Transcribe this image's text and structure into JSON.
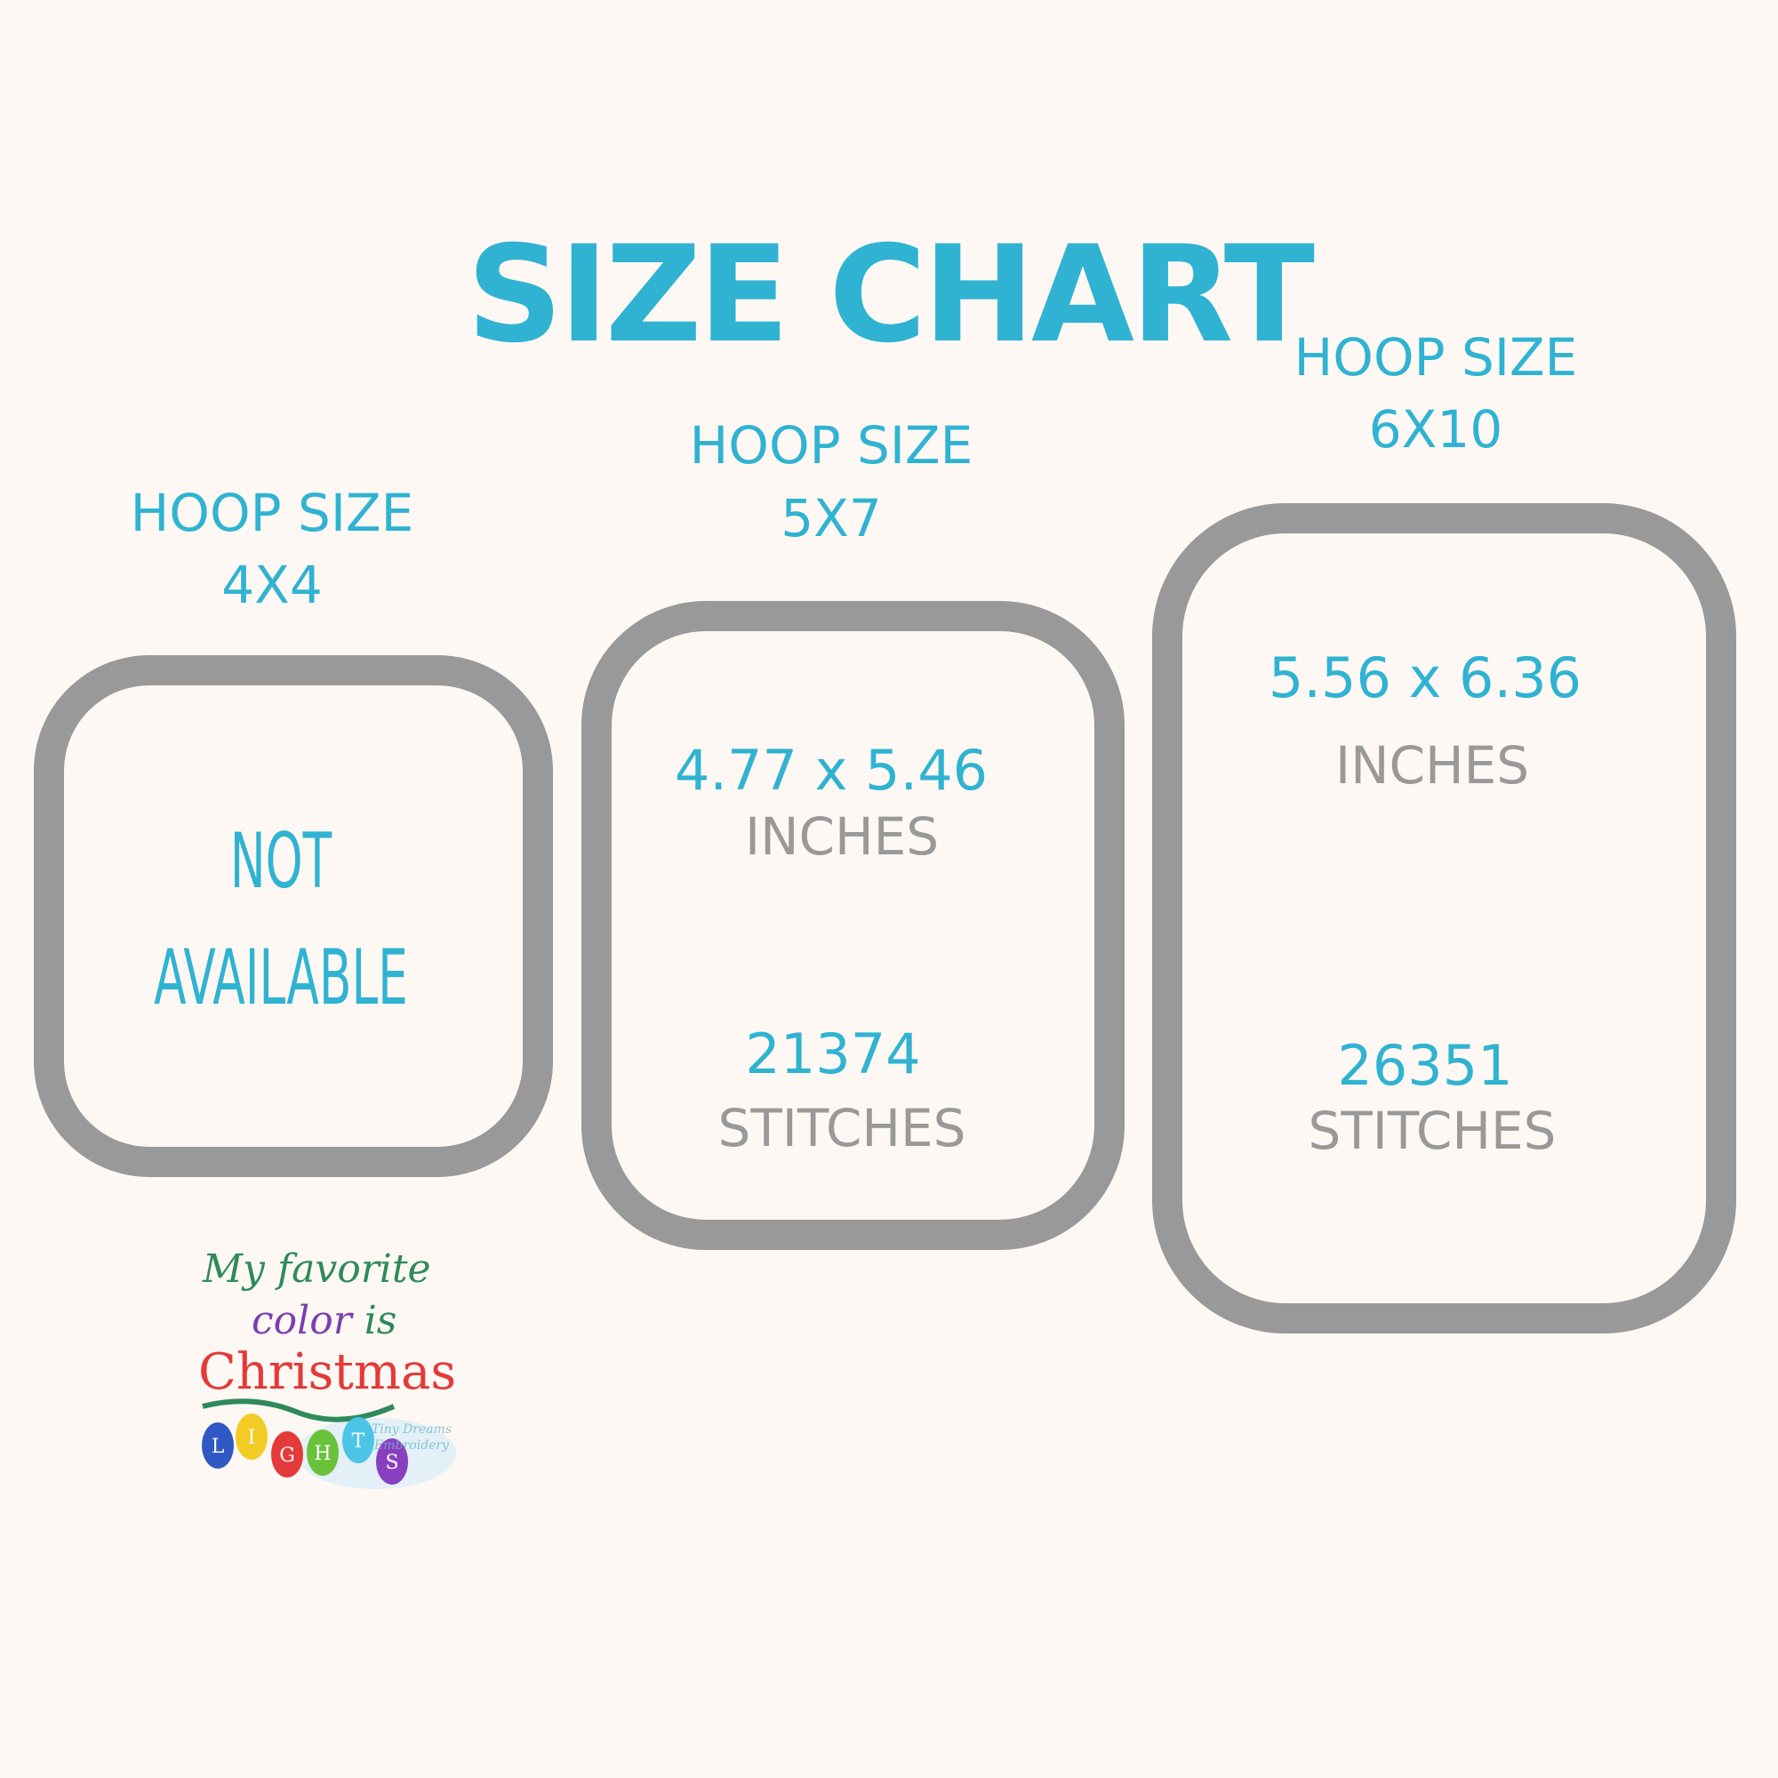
{
  "title": "SIZE CHART",
  "colors": {
    "accent": "#30b3d2",
    "frame": "#999999",
    "background": "#fdf8f3"
  },
  "hoops": [
    {
      "label": "HOOP SIZE",
      "size": "4X4",
      "status": "NOT",
      "status2": "AVAILABLE"
    },
    {
      "label": "HOOP SIZE",
      "size": "5X7",
      "dimensions": "4.77 x 5.46",
      "dim_unit": "INCHES",
      "stitches": "21374",
      "stitch_unit": "STITCHES"
    },
    {
      "label": "HOOP SIZE",
      "size": "6X10",
      "dimensions": "5.56 x 6.36",
      "dim_unit": "INCHES",
      "stitches": "26351",
      "stitch_unit": "STITCHES"
    }
  ],
  "logo": {
    "line1": "My favorite",
    "line2": "color is",
    "line3": "Christmas",
    "letters": [
      "L",
      "I",
      "G",
      "H",
      "T",
      "S"
    ],
    "watermark": "Tiny Dreams Embroidery"
  }
}
